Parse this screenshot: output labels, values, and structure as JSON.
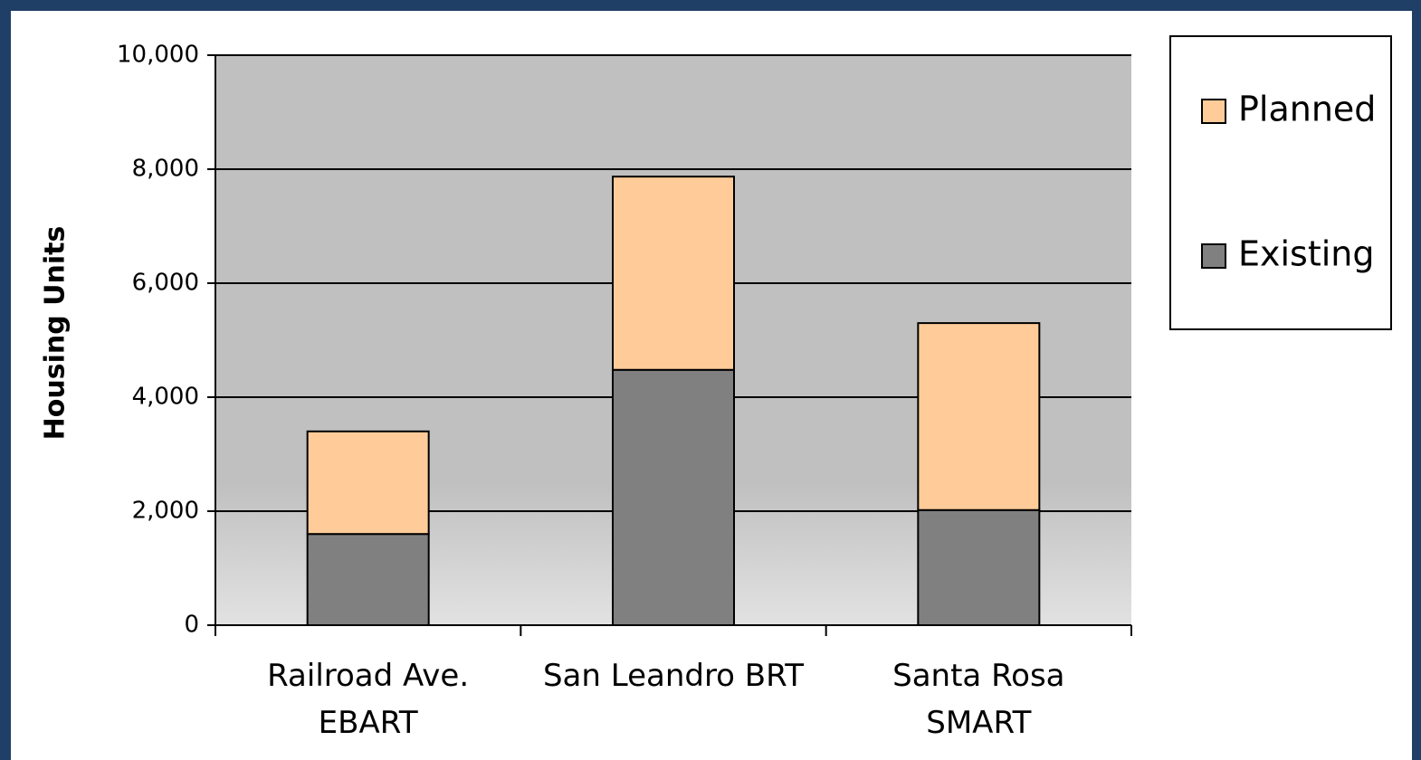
{
  "chart_data": {
    "type": "stacked_bar",
    "y_axis_label": "Housing Units",
    "categories": [
      "Railroad Ave.\nEBART",
      "San Leandro BRT",
      "Santa Rosa\nSMART"
    ],
    "series": [
      {
        "name": "Existing",
        "color": "#808080",
        "values": [
          1600,
          4480,
          2020
        ]
      },
      {
        "name": "Planned",
        "color": "#ffcc99",
        "values": [
          1800,
          3390,
          3280
        ]
      }
    ],
    "ylim": [
      0,
      10000
    ],
    "yticks": [
      0,
      {
        "value": 2000,
        "label": "2,000"
      },
      {
        "value": 4000,
        "label": "4,000"
      },
      {
        "value": 6000,
        "label": "6,000"
      },
      {
        "value": 8000,
        "label": "8,000"
      },
      {
        "value": 10000,
        "label": "10,000"
      }
    ],
    "grid": true,
    "legend": "top-right"
  }
}
